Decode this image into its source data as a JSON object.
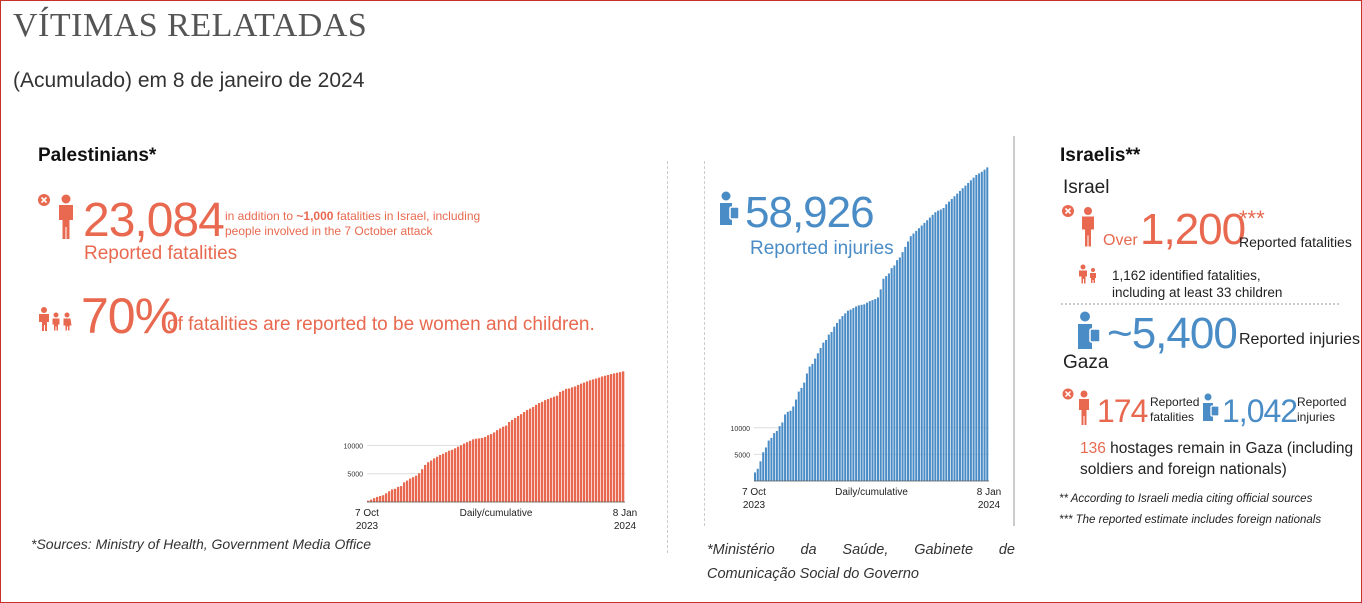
{
  "header": {
    "title": "VÍTIMAS RELATADAS",
    "subtitle": "(Acumulado) em 8 de janeiro de 2024"
  },
  "palestinians": {
    "heading": "Palestinians*",
    "fatalities_value": "23,084",
    "fatalities_label": "Reported fatalities",
    "note_line1_pre": "in addition to ",
    "note_line1_bold": "~1,000",
    "note_line1_post": " fatalities in Israel, including",
    "note_line2": "people involved in the 7 October attack",
    "pct_value": "70%",
    "pct_label": "of fatalities are reported to be women and children.",
    "source": "*Sources: Ministry of Health, Government Media Office"
  },
  "injuries": {
    "value": "58,926",
    "label": "Reported injuries",
    "source_line1_words": [
      "*Ministério",
      "da",
      "Saúde,",
      "Gabinete",
      "de"
    ],
    "source_line2": "Comunicação Social do Governo"
  },
  "israelis": {
    "heading": "Israelis**",
    "israel_heading": "Israel",
    "over_label": "Over",
    "fatal_value": "1,200",
    "fatal_stars": "***",
    "fatal_label": "Reported fatalities",
    "identified_line1": "1,162 identified fatalities,",
    "identified_line2": "including at least 33 children",
    "injury_value": "~5,400",
    "injury_label": "Reported injuries",
    "gaza_heading": "Gaza",
    "gaza_fatal_value": "174",
    "gaza_fatal_label1": "Reported",
    "gaza_fatal_label2": "fatalities",
    "gaza_injury_value": "1,042",
    "gaza_injury_label1": "Reported",
    "gaza_injury_label2": "injuries",
    "hostages_value": "136",
    "hostages_text1": " hostages remain in Gaza (including",
    "hostages_text2": "soldiers and foreign nationals)",
    "footnote1": "** According to Israeli media citing official sources",
    "footnote2": "*** The reported estimate includes foreign nationals"
  },
  "colors": {
    "fatalities": "#e8694f",
    "injuries": "#4a8cc6"
  },
  "chart_data": [
    {
      "type": "bar",
      "series_name": "Reported fatalities",
      "x_start_label": [
        "7 Oct",
        "2023"
      ],
      "x_end_label": [
        "8 Jan",
        "2024"
      ],
      "xlabel": "Daily/cumulative",
      "yticks": [
        5000,
        10000
      ],
      "ylim": [
        0,
        23500
      ],
      "grid": "horizontal",
      "values": [
        232,
        413,
        687,
        900,
        1055,
        1203,
        1537,
        1900,
        2228,
        2329,
        2670,
        2808,
        3478,
        3785,
        4137,
        4385,
        4651,
        5087,
        5791,
        6546,
        7028,
        7326,
        7703,
        8005,
        8306,
        8525,
        8796,
        9061,
        9227,
        9488,
        9770,
        10022,
        10328,
        10569,
        10812,
        11078,
        11180,
        11240,
        11320,
        11500,
        11800,
        12000,
        12300,
        12700,
        13000,
        13300,
        13500,
        14128,
        14500,
        14854,
        15207,
        15523,
        15899,
        16248,
        16500,
        16780,
        17177,
        17487,
        17700,
        17997,
        18205,
        18412,
        18608,
        18787,
        19453,
        19667,
        20000,
        20057,
        20258,
        20424,
        20674,
        20915,
        21110,
        21320,
        21507,
        21672,
        21822,
        21978,
        22185,
        22313,
        22438,
        22600,
        22722,
        22835,
        22950,
        23084
      ]
    },
    {
      "type": "bar",
      "series_name": "Reported injuries",
      "x_start_label": [
        "7 Oct",
        "2023"
      ],
      "x_end_label": [
        "8 Jan",
        "2024"
      ],
      "xlabel": "Daily/cumulative",
      "yticks": [
        5000,
        10000
      ],
      "ylim": [
        0,
        59000
      ],
      "grid": "horizontal",
      "values": [
        1610,
        2300,
        3700,
        5400,
        6300,
        7600,
        8100,
        9000,
        9400,
        10300,
        11000,
        12500,
        13000,
        13200,
        14000,
        15300,
        16800,
        17500,
        18500,
        20200,
        21500,
        22000,
        23000,
        24000,
        25000,
        26000,
        26500,
        27500,
        28000,
        29000,
        29700,
        30400,
        31000,
        31500,
        32000,
        32200,
        32500,
        32800,
        33000,
        33100,
        33200,
        33500,
        33800,
        34000,
        34200,
        34500,
        36000,
        38000,
        38500,
        39000,
        40000,
        40500,
        41500,
        42000,
        43000,
        44000,
        45000,
        46000,
        46500,
        47000,
        47500,
        48000,
        48500,
        49000,
        49500,
        50000,
        50500,
        50800,
        51000,
        51300,
        52000,
        52500,
        53000,
        53500,
        54000,
        54500,
        55000,
        55500,
        56000,
        56500,
        57000,
        57500,
        57800,
        58100,
        58500,
        58926
      ]
    }
  ]
}
